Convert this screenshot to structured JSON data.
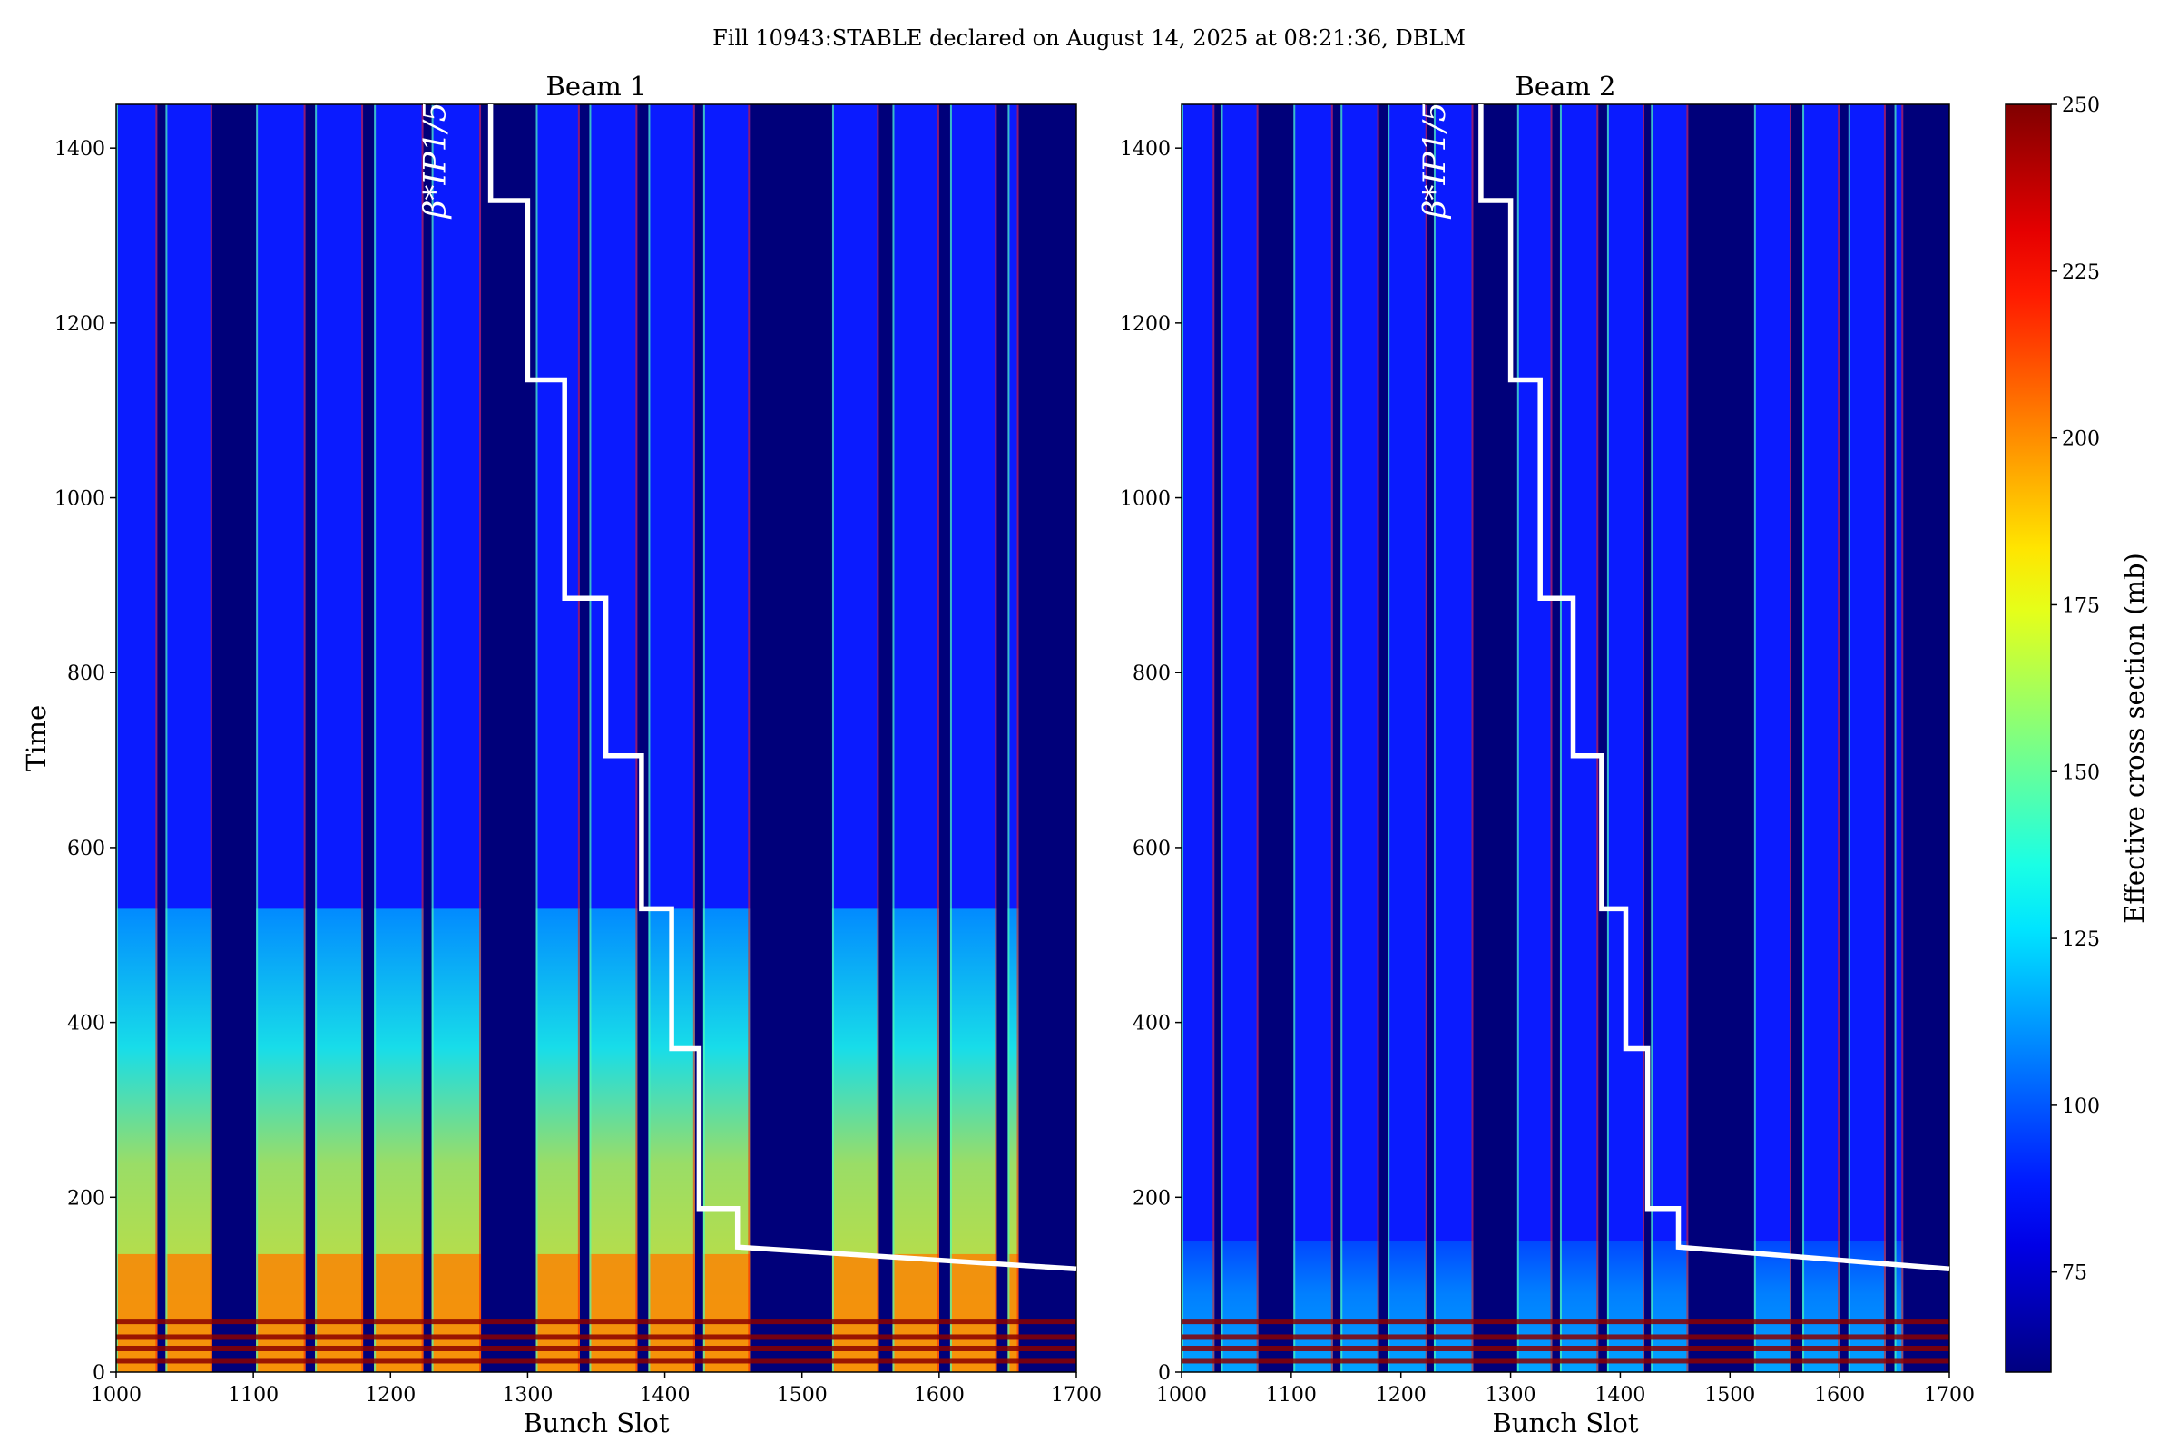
{
  "figure": {
    "suptitle": "Fill 10943:STABLE declared on August 14, 2025 at 08:21:36, DBLM"
  },
  "chart_data": [
    {
      "type": "heatmap",
      "title": "Beam 1",
      "xlabel": "Bunch Slot",
      "ylabel": "Time",
      "xlim": [
        1000,
        1700
      ],
      "ylim": [
        0,
        1450
      ],
      "xticks": [
        1000,
        1100,
        1200,
        1300,
        1400,
        1500,
        1600,
        1700
      ],
      "yticks": [
        0,
        200,
        400,
        600,
        800,
        1000,
        1200,
        1400
      ],
      "filled_trains": [
        [
          1000,
          1030
        ],
        [
          1036,
          1070
        ],
        [
          1102,
          1138
        ],
        [
          1145,
          1180
        ],
        [
          1188,
          1224
        ],
        [
          1230,
          1266
        ],
        [
          1306,
          1338
        ],
        [
          1345,
          1380
        ],
        [
          1388,
          1422
        ],
        [
          1428,
          1462
        ],
        [
          1522,
          1556
        ],
        [
          1566,
          1600
        ],
        [
          1608,
          1642
        ],
        [
          1650,
          1658
        ]
      ],
      "annotation": "β*IP1/5",
      "step_line": {
        "x": [
          1273,
          1273,
          1300,
          1300,
          1327,
          1327,
          1357,
          1357,
          1383,
          1383,
          1405,
          1405,
          1425,
          1425,
          1453,
          1453,
          1700
        ],
        "y": [
          1450,
          1340,
          1340,
          1135,
          1135,
          885,
          885,
          705,
          705,
          530,
          530,
          370,
          370,
          187,
          187,
          143,
          118
        ]
      },
      "colorbar": {
        "label": "Effective cross section (mb)",
        "range": [
          60,
          250
        ],
        "ticks": [
          75,
          100,
          125,
          150,
          175,
          200,
          225,
          250
        ]
      }
    },
    {
      "type": "heatmap",
      "title": "Beam 2",
      "xlabel": "Bunch Slot",
      "ylabel": "",
      "xlim": [
        1000,
        1700
      ],
      "ylim": [
        0,
        1450
      ],
      "xticks": [
        1000,
        1100,
        1200,
        1300,
        1400,
        1500,
        1600,
        1700
      ],
      "yticks": [
        0,
        200,
        400,
        600,
        800,
        1000,
        1200,
        1400
      ],
      "filled_trains": [
        [
          1000,
          1030
        ],
        [
          1036,
          1070
        ],
        [
          1102,
          1138
        ],
        [
          1145,
          1180
        ],
        [
          1188,
          1224
        ],
        [
          1230,
          1266
        ],
        [
          1306,
          1338
        ],
        [
          1345,
          1380
        ],
        [
          1388,
          1422
        ],
        [
          1428,
          1462
        ],
        [
          1522,
          1556
        ],
        [
          1566,
          1600
        ],
        [
          1608,
          1642
        ],
        [
          1650,
          1658
        ]
      ],
      "annotation": "β*IP1/5",
      "step_line": {
        "x": [
          1273,
          1273,
          1300,
          1300,
          1327,
          1327,
          1357,
          1357,
          1383,
          1383,
          1405,
          1405,
          1425,
          1425,
          1453,
          1453,
          1700
        ],
        "y": [
          1450,
          1340,
          1340,
          1135,
          1135,
          885,
          885,
          705,
          705,
          530,
          530,
          370,
          370,
          187,
          187,
          143,
          118
        ]
      },
      "colorbar": {
        "label": "Effective cross section (mb)",
        "range": [
          60,
          250
        ],
        "ticks": [
          75,
          100,
          125,
          150,
          175,
          200,
          225,
          250
        ]
      }
    }
  ],
  "colorbar": {
    "label": "Effective cross section (mb)",
    "min": 60,
    "max": 250,
    "ticks": [
      75,
      100,
      125,
      150,
      175,
      200,
      225,
      250
    ],
    "colormap": "jet"
  },
  "colors": {
    "empty_slot": "#00007a",
    "filled_slot": "#0a1bff",
    "step_line": "#ffffff"
  }
}
